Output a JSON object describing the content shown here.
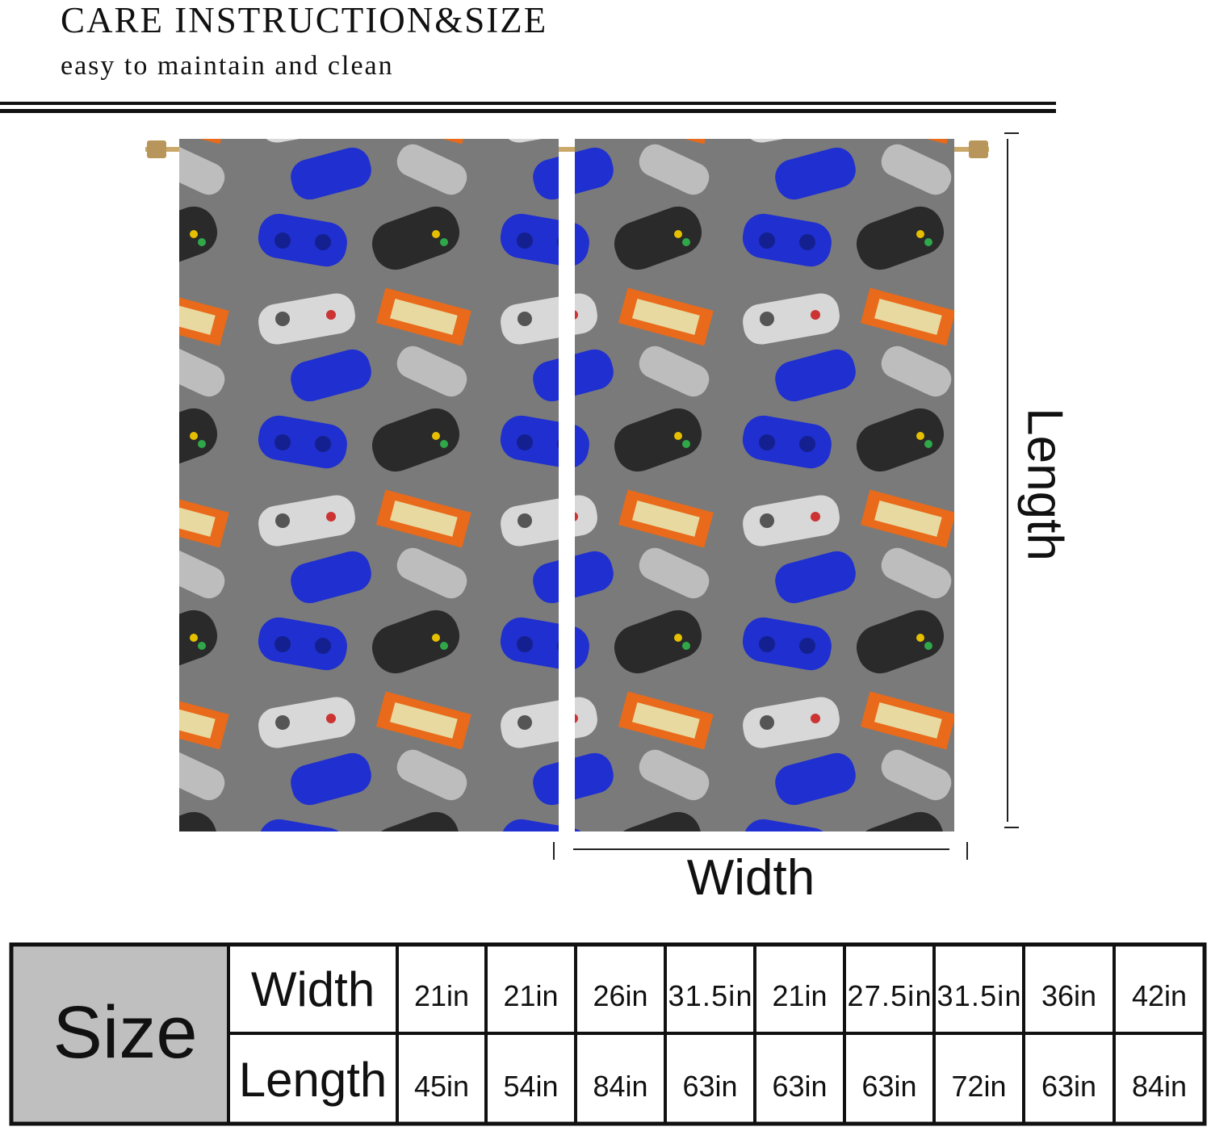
{
  "header": {
    "title": "CARE INSTRUCTION&SIZE",
    "subtitle": "easy to maintain and clean"
  },
  "diagram": {
    "width_label": "Width",
    "length_label": "Length"
  },
  "table": {
    "label": "Size",
    "rows": [
      [
        "Width",
        "21in",
        "21in",
        "26in",
        "31.5in",
        "21in",
        "27.5in",
        "31.5in",
        "36in",
        "42in"
      ],
      [
        "Length",
        "45in",
        "54in",
        "84in",
        "63in",
        "63in",
        "63in",
        "72in",
        "63in",
        "84in"
      ]
    ]
  }
}
